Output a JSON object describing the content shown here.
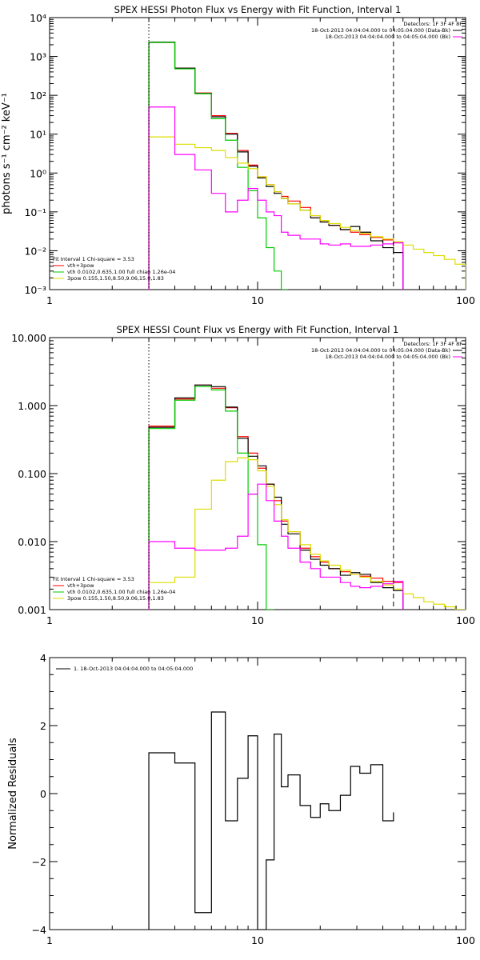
{
  "chart_data": [
    {
      "id": "photon",
      "type": "line",
      "title": "SPEX HESSI Photon Flux vs Energy with Fit Function, Interval 1",
      "xlabel": "",
      "ylabel": "photons s⁻¹ cm⁻² keV⁻¹",
      "xscale": "log",
      "yscale": "log",
      "xlim": [
        1,
        100
      ],
      "ylim": [
        0.001,
        10000
      ],
      "x_ticks": [
        {
          "value": 1,
          "label": "1"
        },
        {
          "value": 10,
          "label": "10"
        },
        {
          "value": 100,
          "label": "100"
        }
      ],
      "y_ticks": [
        {
          "value": 0.001,
          "label": "10⁻³"
        },
        {
          "value": 0.01,
          "label": "10⁻²"
        },
        {
          "value": 0.1,
          "label": "10⁻¹"
        },
        {
          "value": 1,
          "label": "10⁰"
        },
        {
          "value": 10,
          "label": "10¹"
        },
        {
          "value": 100,
          "label": "10²"
        },
        {
          "value": 1000,
          "label": "10³"
        },
        {
          "value": 10000,
          "label": "10⁴"
        }
      ],
      "edges": [
        3,
        4,
        5,
        6,
        7,
        8,
        9,
        10,
        11,
        12,
        13,
        14,
        16,
        18,
        20,
        22,
        25,
        28,
        31,
        35,
        40,
        45,
        50,
        56,
        63,
        70,
        79,
        89,
        100
      ],
      "series": [
        {
          "name": "vth+3pow",
          "role": "total",
          "color": "#ff0000",
          "values": [
            2300,
            500,
            115,
            30,
            10.5,
            3.8,
            1.6,
            0.8,
            0.5,
            0.33,
            0.25,
            0.19,
            0.13,
            0.08,
            0.06,
            0.045,
            0.035,
            0.03,
            0.026,
            0.022,
            0.019,
            0.016,
            null,
            null,
            null,
            null,
            null,
            null
          ]
        },
        {
          "name": "",
          "role": "data",
          "color": "#000000",
          "values": [
            2350,
            500,
            112,
            28,
            10,
            3.5,
            1.5,
            0.75,
            0.45,
            0.3,
            0.22,
            0.16,
            0.11,
            0.07,
            0.055,
            0.045,
            0.035,
            0.042,
            0.03,
            0.018,
            0.012,
            0.009,
            null,
            null,
            null,
            null,
            null,
            null
          ]
        },
        {
          "name": "vth 0.0102,0.635,1.00 full chian 1.26e-04",
          "role": "component",
          "color": "#00cc00",
          "values": [
            2300,
            480,
            110,
            25,
            7,
            1.4,
            0.35,
            0.07,
            0.012,
            0.003,
            0.0009,
            null,
            null,
            null,
            null,
            null,
            null,
            null,
            null,
            null,
            null,
            null,
            null,
            null,
            null,
            null,
            null,
            null
          ]
        },
        {
          "name": "3pow 0.155,1.50,8.50,9.06,15.0,1.83",
          "role": "component",
          "color": "#dddd00",
          "values": [
            8.5,
            5.5,
            4.5,
            3.8,
            2.5,
            1.8,
            1.3,
            0.8,
            0.5,
            0.33,
            0.22,
            0.16,
            0.11,
            0.08,
            0.06,
            0.05,
            0.04,
            0.033,
            0.028,
            0.023,
            0.02,
            0.017,
            0.014,
            0.011,
            0.009,
            0.0075,
            0.006,
            0.0045
          ]
        },
        {
          "name": "",
          "role": "background",
          "color": "#ff00ff",
          "values": [
            50,
            3,
            1.2,
            0.3,
            0.1,
            0.2,
            0.4,
            0.2,
            0.1,
            0.08,
            0.03,
            0.025,
            0.02,
            0.02,
            0.015,
            0.014,
            0.015,
            0.013,
            0.013,
            0.014,
            0.015,
            0.016,
            null,
            null,
            null,
            null,
            null,
            null
          ]
        }
      ],
      "vlines": [
        {
          "x": 3,
          "style": "dotted"
        },
        {
          "x": 45,
          "style": "dashed"
        }
      ],
      "legend_top_right": [
        {
          "text": "Detectors: 1F 3F 4F 8F",
          "color": ""
        },
        {
          "text": "18-Oct-2013 04:04:04.000 to 04:05:04.000 (Data-Bk)",
          "color": "#000000"
        },
        {
          "text": "18-Oct-2013 04:04:04.000 to 04:05:04.000 (Bk)",
          "color": "#ff00ff"
        }
      ],
      "legend_bottom_left_header": "Fit Interval 1    Chi-square = 3.53",
      "legend_bottom_left": [
        {
          "text": "vth+3pow",
          "color": "#ff0000"
        },
        {
          "text": "vth 0.0102,0.635,1.00  full chian 1.26e-04",
          "color": "#00cc00"
        },
        {
          "text": "3pow 0.155,1.50,8.50,9.06,15.0,1.83",
          "color": "#dddd00"
        }
      ]
    },
    {
      "id": "count",
      "type": "line",
      "title": "SPEX HESSI Count Flux vs Energy with Fit Function, Interval 1",
      "xlabel": "",
      "ylabel": "",
      "xscale": "log",
      "yscale": "log",
      "xlim": [
        1,
        100
      ],
      "ylim": [
        0.001,
        10
      ],
      "x_ticks": [
        {
          "value": 1,
          "label": "1"
        },
        {
          "value": 10,
          "label": "10"
        },
        {
          "value": 100,
          "label": "100"
        }
      ],
      "y_ticks": [
        {
          "value": 0.001,
          "label": "0.001"
        },
        {
          "value": 0.01,
          "label": "0.010"
        },
        {
          "value": 0.1,
          "label": "0.100"
        },
        {
          "value": 1,
          "label": "1.000"
        },
        {
          "value": 10,
          "label": "10.000"
        }
      ],
      "edges": [
        3,
        4,
        5,
        6,
        7,
        8,
        9,
        10,
        11,
        12,
        13,
        14,
        16,
        18,
        20,
        22,
        25,
        28,
        31,
        35,
        40,
        45,
        50,
        56,
        63,
        70,
        79,
        89,
        100
      ],
      "series": [
        {
          "name": "vth+3pow",
          "role": "total",
          "color": "#ff0000",
          "values": [
            0.5,
            1.25,
            2.0,
            1.8,
            0.93,
            0.35,
            0.2,
            0.12,
            0.07,
            0.04,
            0.02,
            0.014,
            0.008,
            0.006,
            0.005,
            0.004,
            0.0036,
            0.0033,
            0.0031,
            0.0029,
            0.0026,
            0.0025,
            null,
            null,
            null,
            null,
            null,
            null
          ]
        },
        {
          "name": "",
          "role": "data",
          "color": "#000000",
          "values": [
            0.48,
            1.3,
            2.0,
            1.9,
            0.95,
            0.33,
            0.18,
            0.13,
            0.07,
            0.045,
            0.018,
            0.013,
            0.0075,
            0.0055,
            0.0045,
            0.004,
            0.0032,
            0.0035,
            0.0033,
            0.0025,
            0.0021,
            0.0019,
            null,
            null,
            null,
            null,
            null,
            null
          ]
        },
        {
          "name": "vth 0.0102,0.635,1.00 full chian 1.26e-04",
          "role": "component",
          "color": "#00cc00",
          "values": [
            0.46,
            1.2,
            1.9,
            1.7,
            0.83,
            0.2,
            0.05,
            0.009,
            0.001,
            null,
            null,
            null,
            null,
            null,
            null,
            null,
            null,
            null,
            null,
            null,
            null,
            null,
            null,
            null,
            null,
            null,
            null,
            null
          ]
        },
        {
          "name": "3pow 0.155,1.50,8.50,9.06,15.0,1.83",
          "role": "component",
          "color": "#dddd00",
          "values": [
            0.0025,
            0.003,
            0.03,
            0.08,
            0.15,
            0.17,
            0.16,
            0.11,
            0.065,
            0.035,
            0.021,
            0.014,
            0.009,
            0.0065,
            0.0052,
            0.0045,
            0.0038,
            0.0033,
            0.003,
            0.0026,
            0.0023,
            0.002,
            0.0017,
            0.0015,
            0.0013,
            0.0012,
            0.0011,
            0.001
          ]
        },
        {
          "name": "",
          "role": "background",
          "color": "#ff00ff",
          "values": [
            0.01,
            0.008,
            0.0075,
            0.0075,
            0.008,
            0.012,
            0.05,
            0.07,
            0.04,
            0.02,
            0.012,
            0.008,
            0.005,
            0.004,
            0.003,
            0.003,
            0.0025,
            0.0022,
            0.0021,
            0.0022,
            0.0024,
            0.0026,
            null,
            null,
            null,
            null,
            null,
            null
          ]
        }
      ],
      "vlines": [
        {
          "x": 3,
          "style": "dotted"
        },
        {
          "x": 45,
          "style": "dashed"
        }
      ],
      "legend_top_right": [
        {
          "text": "Detectors: 1F 3F 4F 8F",
          "color": ""
        },
        {
          "text": "18-Oct-2013 04:04:04.000 to 04:05:04.000 (Data-Bk)",
          "color": "#000000"
        },
        {
          "text": "18-Oct-2013 04:04:04.000 to 04:05:04.000 (Bk)",
          "color": "#ff00ff"
        }
      ],
      "legend_bottom_left_header": "Fit Interval 1    Chi-square = 3.53",
      "legend_bottom_left": [
        {
          "text": "vth+3pow",
          "color": "#ff0000"
        },
        {
          "text": "vth 0.0102,0.635,1.00  full chian 1.26e-04",
          "color": "#00cc00"
        },
        {
          "text": "3pow 0.155,1.50,8.50,9.06,15.0,1.83",
          "color": "#dddd00"
        }
      ]
    },
    {
      "id": "residuals",
      "type": "line",
      "title": "",
      "xlabel": "",
      "ylabel": "Normalized Residuals",
      "xscale": "log",
      "yscale": "linear",
      "xlim": [
        1,
        100
      ],
      "ylim": [
        -4,
        4
      ],
      "x_ticks": [
        {
          "value": 1,
          "label": "1"
        },
        {
          "value": 10,
          "label": "10"
        },
        {
          "value": 100,
          "label": "100"
        }
      ],
      "y_ticks": [
        {
          "value": -4,
          "label": "−4"
        },
        {
          "value": -2,
          "label": "−2"
        },
        {
          "value": 0,
          "label": "0"
        },
        {
          "value": 2,
          "label": "2"
        },
        {
          "value": 4,
          "label": "4"
        }
      ],
      "edges": [
        3,
        4,
        5,
        6,
        7,
        8,
        9,
        10,
        11,
        12,
        13,
        14,
        16,
        18,
        20,
        22,
        25,
        28,
        31,
        35,
        40,
        45
      ],
      "series": [
        {
          "name": "1. 18-Oct-2013 04:04:04.000 to 04:05:04.000",
          "role": "residual",
          "color": "#000000",
          "values": [
            1.2,
            0.9,
            -3.5,
            2.4,
            -0.8,
            0.45,
            1.7,
            -4.0,
            -1.95,
            1.75,
            0.2,
            0.55,
            -0.35,
            -0.7,
            -0.3,
            -0.5,
            -0.05,
            0.8,
            0.6,
            0.85,
            -0.8,
            -0.55
          ]
        }
      ],
      "vlines": [],
      "legend_top_left": [
        {
          "text": "1. 18-Oct-2013 04:04:04.000 to 04:05:04.000",
          "color": "#000000"
        }
      ]
    }
  ]
}
